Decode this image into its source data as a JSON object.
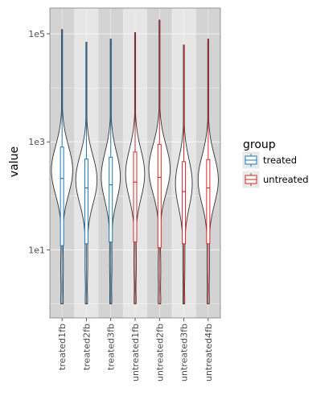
{
  "chart_data": {
    "type": "violin",
    "xlabel": "",
    "ylabel": "value",
    "yscale": "log10",
    "ylim": [
      0.55,
      300000
    ],
    "yticks": [
      10,
      1000,
      100000
    ],
    "ytick_labels": [
      "1e1",
      "1e3",
      "1e5"
    ],
    "grid": true,
    "legend": {
      "title": "group",
      "placement": "right",
      "entries": [
        {
          "label": "treated",
          "color": "#1f77b4"
        },
        {
          "label": "untreated",
          "color": "#d62728"
        }
      ]
    },
    "categories": [
      "treated1fb",
      "treated2fb",
      "treated3fb",
      "untreated1fb",
      "untreated2fb",
      "untreated3fb",
      "untreated4fb"
    ],
    "groups": [
      "treated",
      "treated",
      "treated",
      "untreated",
      "untreated",
      "untreated",
      "untreated"
    ],
    "series": [
      {
        "category": "treated1fb",
        "group": "treated",
        "min": 1,
        "q1": 12,
        "median": 210,
        "q3": 800,
        "max": 120000,
        "width_scale": 0.95
      },
      {
        "category": "treated2fb",
        "group": "treated",
        "min": 1,
        "q1": 13,
        "median": 140,
        "q3": 480,
        "max": 70000,
        "width_scale": 0.95
      },
      {
        "category": "treated3fb",
        "group": "treated",
        "min": 1,
        "q1": 14,
        "median": 160,
        "q3": 520,
        "max": 80000,
        "width_scale": 0.85
      },
      {
        "category": "untreated1fb",
        "group": "untreated",
        "min": 1,
        "q1": 14,
        "median": 180,
        "q3": 650,
        "max": 105000,
        "width_scale": 0.85
      },
      {
        "category": "untreated2fb",
        "group": "untreated",
        "min": 1,
        "q1": 11,
        "median": 220,
        "q3": 900,
        "max": 180000,
        "width_scale": 0.95
      },
      {
        "category": "untreated3fb",
        "group": "untreated",
        "min": 1,
        "q1": 13,
        "median": 120,
        "q3": 430,
        "max": 62000,
        "width_scale": 0.75
      },
      {
        "category": "untreated4fb",
        "group": "untreated",
        "min": 1,
        "q1": 13,
        "median": 140,
        "q3": 470,
        "max": 80000,
        "width_scale": 0.9
      }
    ]
  }
}
